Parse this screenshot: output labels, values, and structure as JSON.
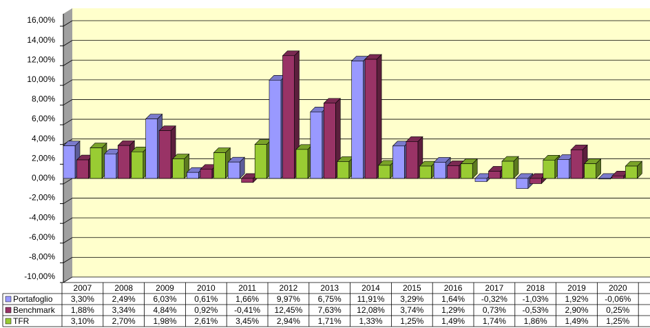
{
  "chart_data": {
    "type": "bar3d",
    "categories": [
      "2007",
      "2008",
      "2009",
      "2010",
      "2011",
      "2012",
      "2013",
      "2014",
      "2015",
      "2016",
      "2017",
      "2018",
      "2019",
      "2020"
    ],
    "series": [
      {
        "name": "Portafoglio",
        "color": "#9999ff",
        "values": [
          3.3,
          2.49,
          6.03,
          0.61,
          1.66,
          9.97,
          6.75,
          11.91,
          3.29,
          1.64,
          -0.32,
          -1.03,
          1.92,
          -0.06
        ],
        "value_labels": [
          "3,30%",
          "2,49%",
          "6,03%",
          "0,61%",
          "1,66%",
          "9,97%",
          "6,75%",
          "11,91%",
          "3,29%",
          "1,64%",
          "-0,32%",
          "-1,03%",
          "1,92%",
          "-0,06%"
        ]
      },
      {
        "name": "Benchmark",
        "color": "#993366",
        "values": [
          1.88,
          3.34,
          4.84,
          0.92,
          -0.41,
          12.45,
          7.63,
          12.08,
          3.74,
          1.29,
          0.73,
          -0.53,
          2.9,
          0.25
        ],
        "value_labels": [
          "1,88%",
          "3,34%",
          "4,84%",
          "0,92%",
          "-0,41%",
          "12,45%",
          "7,63%",
          "12,08%",
          "3,74%",
          "1,29%",
          "0,73%",
          "-0,53%",
          "2,90%",
          "0,25%"
        ]
      },
      {
        "name": "TFR",
        "color": "#99cc33",
        "values": [
          3.1,
          2.7,
          1.98,
          2.61,
          3.45,
          2.94,
          1.71,
          1.33,
          1.25,
          1.49,
          1.74,
          1.86,
          1.49,
          1.25
        ],
        "value_labels": [
          "3,10%",
          "2,70%",
          "1,98%",
          "2,61%",
          "3,45%",
          "2,94%",
          "1,71%",
          "1,33%",
          "1,25%",
          "1,49%",
          "1,74%",
          "1,86%",
          "1,49%",
          "1,25%"
        ]
      }
    ],
    "ylim": [
      -10,
      16
    ],
    "yticks": [
      {
        "value": -10,
        "label": "-10,00%"
      },
      {
        "value": -8,
        "label": "-8,00%"
      },
      {
        "value": -6,
        "label": "-6,00%"
      },
      {
        "value": -4,
        "label": "-4,00%"
      },
      {
        "value": -2,
        "label": "-2,00%"
      },
      {
        "value": 0,
        "label": "0,00%"
      },
      {
        "value": 2,
        "label": "2,00%"
      },
      {
        "value": 4,
        "label": "4,00%"
      },
      {
        "value": 6,
        "label": "6,00%"
      },
      {
        "value": 8,
        "label": "8,00%"
      },
      {
        "value": 10,
        "label": "10,00%"
      },
      {
        "value": 12,
        "label": "12,00%"
      },
      {
        "value": 14,
        "label": "14,00%"
      },
      {
        "value": 16,
        "label": "16,00%"
      }
    ],
    "grid": true
  }
}
